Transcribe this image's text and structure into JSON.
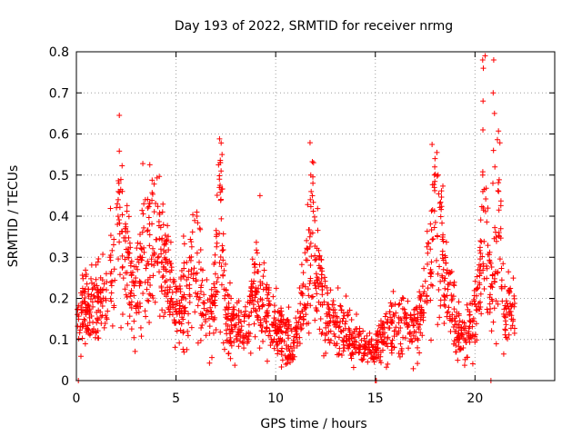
{
  "chart_data": {
    "type": "scatter",
    "title": "Day 193 of 2022, SRMTID for receiver nrmg",
    "xlabel": "GPS time / hours",
    "ylabel": "SRMTID / TECUs",
    "xlim": [
      0,
      24
    ],
    "ylim": [
      0,
      0.8
    ],
    "xticks": [
      0,
      5,
      10,
      15,
      20
    ],
    "xtick_labels": [
      "0",
      "5",
      "10",
      "15",
      "20"
    ],
    "yticks": [
      0,
      0.1,
      0.2,
      0.3,
      0.4,
      0.5,
      0.6,
      0.7,
      0.8
    ],
    "ytick_labels": [
      "0",
      "0.1",
      "0.2",
      "0.3",
      "0.4",
      "0.5",
      "0.6",
      "0.7",
      "0.8"
    ],
    "grid": true,
    "marker": "+",
    "color": "#ff0000",
    "envelope": [
      [
        0.0,
        0.15
      ],
      [
        0.5,
        0.18
      ],
      [
        1.0,
        0.17
      ],
      [
        1.5,
        0.22
      ],
      [
        2.0,
        0.3
      ],
      [
        2.2,
        0.4
      ],
      [
        2.5,
        0.32
      ],
      [
        2.8,
        0.18
      ],
      [
        3.2,
        0.28
      ],
      [
        3.5,
        0.32
      ],
      [
        4.0,
        0.35
      ],
      [
        4.5,
        0.28
      ],
      [
        5.0,
        0.17
      ],
      [
        5.5,
        0.22
      ],
      [
        6.0,
        0.28
      ],
      [
        6.5,
        0.15
      ],
      [
        7.0,
        0.22
      ],
      [
        7.2,
        0.45
      ],
      [
        7.5,
        0.15
      ],
      [
        8.0,
        0.12
      ],
      [
        8.5,
        0.13
      ],
      [
        9.0,
        0.22
      ],
      [
        9.5,
        0.18
      ],
      [
        10.0,
        0.14
      ],
      [
        10.5,
        0.1
      ],
      [
        11.0,
        0.1
      ],
      [
        11.5,
        0.22
      ],
      [
        11.8,
        0.4
      ],
      [
        12.2,
        0.22
      ],
      [
        12.5,
        0.15
      ],
      [
        13.0,
        0.14
      ],
      [
        13.5,
        0.12
      ],
      [
        14.0,
        0.1
      ],
      [
        14.5,
        0.07
      ],
      [
        15.0,
        0.08
      ],
      [
        15.5,
        0.12
      ],
      [
        16.0,
        0.14
      ],
      [
        16.5,
        0.14
      ],
      [
        17.0,
        0.13
      ],
      [
        17.5,
        0.2
      ],
      [
        18.0,
        0.42
      ],
      [
        18.5,
        0.25
      ],
      [
        19.0,
        0.13
      ],
      [
        19.5,
        0.11
      ],
      [
        20.0,
        0.15
      ],
      [
        20.5,
        0.38
      ],
      [
        20.9,
        0.2
      ],
      [
        21.2,
        0.45
      ],
      [
        21.5,
        0.18
      ],
      [
        22.0,
        0.15
      ]
    ],
    "spikes": [
      {
        "x": 20.45,
        "values": [
          0.79,
          0.78,
          0.76,
          0.68,
          0.61,
          0.5,
          0.46,
          0.42
        ]
      },
      {
        "x": 20.95,
        "values": [
          0.78,
          0.7,
          0.65,
          0.56,
          0.52,
          0.48
        ]
      },
      {
        "x": 7.25,
        "values": [
          0.55,
          0.53,
          0.51,
          0.49,
          0.47
        ]
      },
      {
        "x": 9.2,
        "values": [
          0.45
        ]
      },
      {
        "x": 11.8,
        "values": [
          0.5,
          0.48,
          0.46,
          0.44
        ]
      },
      {
        "x": 18.0,
        "values": [
          0.54,
          0.52,
          0.5,
          0.47
        ]
      },
      {
        "x": 2.1,
        "values": [
          0.48,
          0.46,
          0.44
        ]
      },
      {
        "x": 3.4,
        "values": [
          0.44,
          0.43
        ]
      },
      {
        "x": 6.0,
        "values": [
          0.41,
          0.4
        ]
      }
    ],
    "zero_points": [
      0.1,
      15.0,
      15.05,
      20.8
    ]
  }
}
